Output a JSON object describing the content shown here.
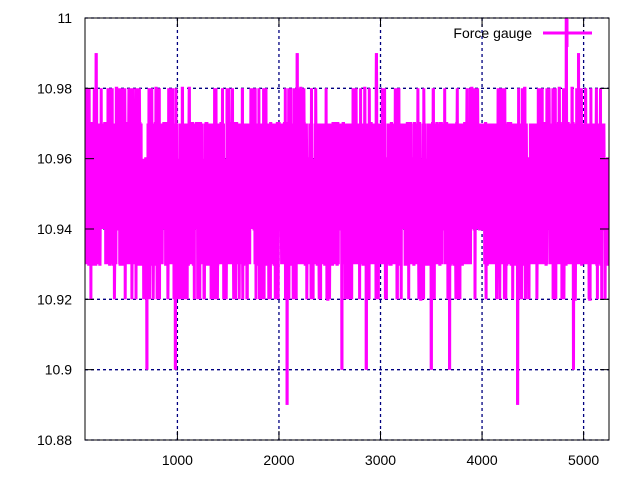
{
  "chart_data": {
    "type": "line",
    "title": "",
    "xlabel": "",
    "ylabel": "",
    "xlim": [
      90,
      5250
    ],
    "ylim": [
      10.88,
      11.0
    ],
    "xticks": [
      1000,
      2000,
      3000,
      4000,
      5000
    ],
    "xtick_labels": [
      "1000",
      "2000",
      "3000",
      "4000",
      "5000"
    ],
    "yticks": [
      10.88,
      10.9,
      10.92,
      10.94,
      10.96,
      10.98,
      11.0
    ],
    "ytick_labels": [
      "10.88",
      "10.9",
      "10.92",
      "10.94",
      "10.96",
      "10.98",
      "11"
    ],
    "grid": true,
    "legend_position": "top-right",
    "series": [
      {
        "name": "Force gauge",
        "color": "#ff00ff",
        "quantization_step": 0.01,
        "typical_range": [
          10.92,
          10.98
        ],
        "outliers": [
          {
            "x": 2080,
            "y": 10.89
          },
          {
            "x": 4350,
            "y": 10.89
          },
          {
            "x": 700,
            "y": 10.9
          },
          {
            "x": 980,
            "y": 10.9
          },
          {
            "x": 2620,
            "y": 10.9
          },
          {
            "x": 2860,
            "y": 10.9
          },
          {
            "x": 3500,
            "y": 10.9
          },
          {
            "x": 3680,
            "y": 10.9
          },
          {
            "x": 4900,
            "y": 10.9
          },
          {
            "x": 4830,
            "y": 11.0
          },
          {
            "x": 130,
            "y": 10.98
          },
          {
            "x": 400,
            "y": 10.98
          },
          {
            "x": 720,
            "y": 10.98
          },
          {
            "x": 1050,
            "y": 10.98
          },
          {
            "x": 1380,
            "y": 10.98
          },
          {
            "x": 1640,
            "y": 10.98
          },
          {
            "x": 1850,
            "y": 10.98
          },
          {
            "x": 2320,
            "y": 10.98
          },
          {
            "x": 2730,
            "y": 10.98
          },
          {
            "x": 3180,
            "y": 10.98
          },
          {
            "x": 3520,
            "y": 10.98
          },
          {
            "x": 3900,
            "y": 10.98
          },
          {
            "x": 4420,
            "y": 10.98
          },
          {
            "x": 4720,
            "y": 10.98
          },
          {
            "x": 5020,
            "y": 10.98
          },
          {
            "x": 200,
            "y": 10.99
          },
          {
            "x": 2180,
            "y": 10.99
          },
          {
            "x": 2960,
            "y": 10.99
          },
          {
            "x": 4950,
            "y": 10.99
          }
        ]
      }
    ]
  }
}
